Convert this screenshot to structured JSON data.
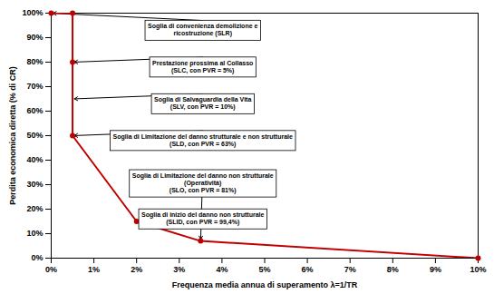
{
  "chart_data": {
    "type": "line",
    "xlabel": "Frequenza media annua di superamento λ=1/TR",
    "ylabel": "Perdita economica diretta (% di CR)",
    "xlim": [
      0,
      10
    ],
    "ylim": [
      0,
      100
    ],
    "xticks": [
      {
        "value": 0,
        "label": "0%"
      },
      {
        "value": 1,
        "label": "1%"
      },
      {
        "value": 2,
        "label": "2%"
      },
      {
        "value": 3,
        "label": "3%"
      },
      {
        "value": 4,
        "label": "4%"
      },
      {
        "value": 5,
        "label": "5%"
      },
      {
        "value": 6,
        "label": "6%"
      },
      {
        "value": 7,
        "label": "7%"
      },
      {
        "value": 8,
        "label": "8%"
      },
      {
        "value": 9,
        "label": "9%"
      },
      {
        "value": 10,
        "label": "10%"
      }
    ],
    "yticks": [
      {
        "value": 0,
        "label": "0%"
      },
      {
        "value": 10,
        "label": "10%"
      },
      {
        "value": 20,
        "label": "20%"
      },
      {
        "value": 30,
        "label": "30%"
      },
      {
        "value": 40,
        "label": "40%"
      },
      {
        "value": 50,
        "label": "50%"
      },
      {
        "value": 60,
        "label": "60%"
      },
      {
        "value": 70,
        "label": "70%"
      },
      {
        "value": 80,
        "label": "80%"
      },
      {
        "value": 90,
        "label": "90%"
      },
      {
        "value": 100,
        "label": "100%"
      }
    ],
    "grid": false,
    "series": [
      {
        "type": "line",
        "color": "#C00000",
        "x": [
          0.0,
          0.5,
          0.5,
          2.0,
          3.5,
          10.0
        ],
        "values": [
          100,
          100,
          50,
          15,
          7,
          0
        ]
      },
      {
        "type": "scatter",
        "color": "#C00000",
        "x": [
          0.0,
          0.5,
          0.5,
          0.5,
          2.0,
          3.5,
          10.0
        ],
        "values": [
          100,
          100,
          80,
          50,
          15,
          7,
          0
        ]
      }
    ],
    "annotations": [
      {
        "text": "Soglia di convenienza demolizione e\nricostruzione (SLR)",
        "xy": [
          0.0,
          100
        ],
        "xytext": [
          3.55,
          97
        ]
      },
      {
        "text": "Prestazione prossima al Collasso\n(SLC, con PVR = 5%)",
        "xy": [
          0.5,
          80
        ],
        "xytext": [
          3.55,
          82
        ]
      },
      {
        "text": "Soglia di Salvaguardia della Vita\n(SLV, con PVR = 10%)",
        "xy": [
          0.5,
          65
        ],
        "xytext": [
          3.55,
          67
        ]
      },
      {
        "text": "Soglia di Limitazione del danno strutturale e non strutturale\n(SLD, con PVR = 63%)",
        "xy": [
          0.5,
          50
        ],
        "xytext": [
          3.55,
          52
        ]
      },
      {
        "text": "Soglia di Limitazione del danno non strutturale\n(Operatività)\n(SLO, con PVR = 81%)",
        "xy": [
          3.5,
          7
        ],
        "xytext": [
          3.55,
          36
        ]
      },
      {
        "text": "Soglia di inizio del danno non strutturale\n(SLID, con PVR = 99,4%)",
        "xy": [
          2.0,
          15
        ],
        "xytext": [
          3.55,
          20
        ]
      }
    ]
  }
}
